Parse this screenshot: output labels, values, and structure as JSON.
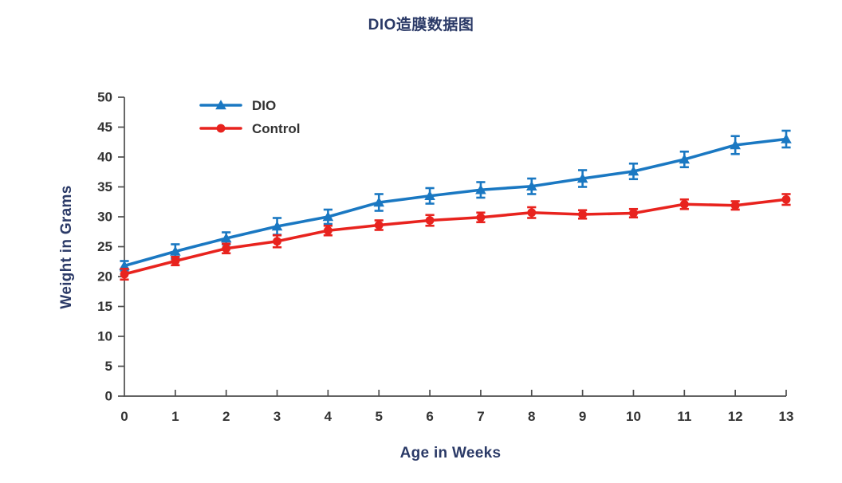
{
  "chart_data": {
    "type": "line",
    "title": "DIO造膜数据图",
    "xlabel": "Age in Weeks",
    "ylabel": "Weight in Grams",
    "x": [
      0,
      1,
      2,
      3,
      4,
      5,
      6,
      7,
      8,
      9,
      10,
      11,
      12,
      13
    ],
    "xlim": [
      0,
      13
    ],
    "ylim": [
      0,
      50
    ],
    "ytick_step": 5,
    "xtick_labels": [
      "0",
      "1",
      "2",
      "3",
      "4",
      "5",
      "6",
      "7",
      "8",
      "9",
      "10",
      "11",
      "12",
      "13"
    ],
    "ytick_labels": [
      "0",
      "5",
      "10",
      "15",
      "20",
      "25",
      "30",
      "35",
      "40",
      "45",
      "50"
    ],
    "grid": false,
    "legend_position": "upper-left-inside",
    "series": [
      {
        "name": "DIO",
        "color": "#1a78c2",
        "marker": "triangle-up",
        "values": [
          21.8,
          24.2,
          26.4,
          28.4,
          30.0,
          32.4,
          33.5,
          34.5,
          35.1,
          36.4,
          37.6,
          39.6,
          42.0,
          43.0
        ],
        "errors": [
          0.8,
          1.2,
          1.0,
          1.4,
          1.2,
          1.4,
          1.3,
          1.3,
          1.3,
          1.4,
          1.3,
          1.3,
          1.5,
          1.4
        ]
      },
      {
        "name": "Control",
        "color": "#e8231e",
        "marker": "circle",
        "values": [
          20.4,
          22.6,
          24.7,
          25.9,
          27.7,
          28.6,
          29.4,
          29.9,
          30.7,
          30.4,
          30.6,
          32.1,
          31.9,
          32.9
        ],
        "errors": [
          0.9,
          0.7,
          0.8,
          1.0,
          0.8,
          0.8,
          0.9,
          0.8,
          0.9,
          0.7,
          0.7,
          0.8,
          0.7,
          0.9
        ]
      }
    ]
  },
  "theme": {
    "title_color": "#2b3a67",
    "axis_label_color": "#2b3a67",
    "tick_text_color": "#333333",
    "axis_line_color": "#4d4d4d",
    "background_color": "#ffffff"
  }
}
